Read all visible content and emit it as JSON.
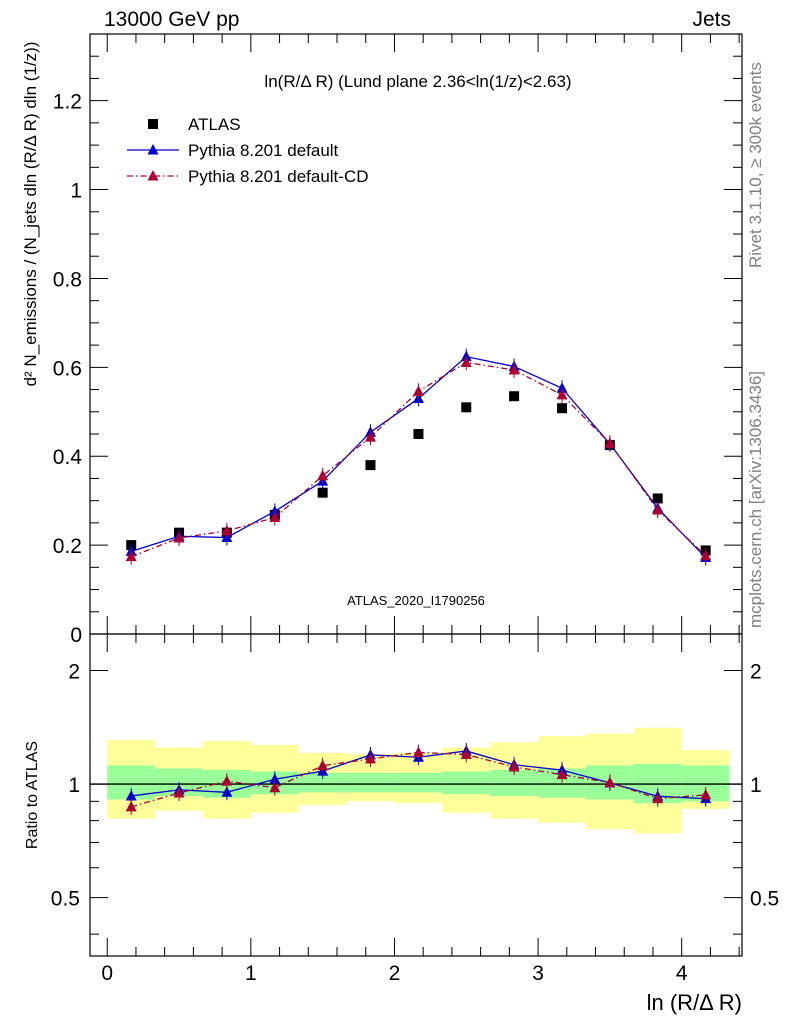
{
  "header": {
    "left": "13000 GeV pp",
    "right": "Jets"
  },
  "side": {
    "rivet": "Rivet 3.1.10, ≥ 300k events",
    "mcplots": "mcplots.cern.ch [arXiv:1306.3436]"
  },
  "chart_data": [
    {
      "type": "scatter",
      "title": "ln(R/Δ R) (Lund plane 2.36<ln(1/z)<2.63)",
      "watermark": "ATLAS_2020_I1790256",
      "ylabel_main": "d² N_emissions / (N_jets dln (R/Δ R) dln (1/z))",
      "xlabel": "ln (R/Δ R)",
      "xlim": [
        -0.12,
        4.42
      ],
      "ylim": [
        0,
        1.35
      ],
      "yticks": [
        "0",
        "0.2",
        "0.4",
        "0.6",
        "0.8",
        "1",
        "1.2"
      ],
      "xticks": [
        "0",
        "1",
        "2",
        "3",
        "4"
      ],
      "legend_position": "top-left",
      "series": [
        {
          "name": "ATLAS",
          "color": "#000000",
          "marker": "square",
          "x": [
            0.167,
            0.5,
            0.833,
            1.167,
            1.5,
            1.833,
            2.167,
            2.5,
            2.833,
            3.167,
            3.5,
            3.833,
            4.167
          ],
          "y": [
            0.2,
            0.228,
            0.228,
            0.268,
            0.318,
            0.38,
            0.45,
            0.51,
            0.535,
            0.508,
            0.425,
            0.305,
            0.188
          ]
        },
        {
          "name": "Pythia 8.201 default",
          "color": "#0000cc",
          "marker": "triangle",
          "line": "solid",
          "x": [
            0.167,
            0.5,
            0.833,
            1.167,
            1.5,
            1.833,
            2.167,
            2.5,
            2.833,
            3.167,
            3.5,
            3.833,
            4.167
          ],
          "y": [
            0.186,
            0.22,
            0.217,
            0.276,
            0.344,
            0.454,
            0.53,
            0.624,
            0.602,
            0.553,
            0.428,
            0.283,
            0.172
          ]
        },
        {
          "name": "Pythia 8.201 default-CD",
          "color": "#aa0033",
          "marker": "triangle",
          "line": "dashdot",
          "x": [
            0.167,
            0.5,
            0.833,
            1.167,
            1.5,
            1.833,
            2.167,
            2.5,
            2.833,
            3.167,
            3.5,
            3.833,
            4.167
          ],
          "y": [
            0.174,
            0.216,
            0.232,
            0.262,
            0.356,
            0.443,
            0.546,
            0.611,
            0.594,
            0.538,
            0.429,
            0.279,
            0.176
          ]
        }
      ]
    },
    {
      "type": "scatter",
      "ylabel": "Ratio to ATLAS",
      "xlabel": "ln (R/Δ R)",
      "xlim": [
        -0.12,
        4.42
      ],
      "ylim": [
        0.35,
        2.5
      ],
      "yticks": [
        "0.5",
        "1",
        "2"
      ],
      "reference_line": 1,
      "bands": {
        "edges": [
          0,
          0.333,
          0.667,
          1.0,
          1.333,
          1.667,
          2.0,
          2.333,
          2.667,
          3.0,
          3.333,
          3.667,
          4.0,
          4.333
        ],
        "inner_lo": [
          0.91,
          0.93,
          0.92,
          0.94,
          0.95,
          0.95,
          0.95,
          0.94,
          0.93,
          0.92,
          0.91,
          0.89,
          0.9
        ],
        "inner_hi": [
          1.12,
          1.1,
          1.09,
          1.08,
          1.07,
          1.07,
          1.07,
          1.08,
          1.09,
          1.1,
          1.12,
          1.13,
          1.12
        ],
        "outer_lo": [
          0.81,
          0.85,
          0.81,
          0.84,
          0.88,
          0.9,
          0.89,
          0.84,
          0.81,
          0.79,
          0.76,
          0.74,
          0.86
        ],
        "outer_hi": [
          1.31,
          1.25,
          1.3,
          1.27,
          1.21,
          1.2,
          1.21,
          1.25,
          1.29,
          1.34,
          1.36,
          1.41,
          1.23
        ],
        "inner_color": "#99ff99",
        "outer_color": "#ffff99"
      },
      "series": [
        {
          "name": "Pythia 8.201 default",
          "color": "#0000cc",
          "x": [
            0.167,
            0.5,
            0.833,
            1.167,
            1.5,
            1.833,
            2.167,
            2.5,
            2.833,
            3.167,
            3.5,
            3.833,
            4.167
          ],
          "y": [
            0.93,
            0.965,
            0.951,
            1.03,
            1.082,
            1.195,
            1.178,
            1.224,
            1.125,
            1.089,
            1.007,
            0.928,
            0.915
          ]
        },
        {
          "name": "Pythia 8.201 default-CD",
          "color": "#aa0033",
          "x": [
            0.167,
            0.5,
            0.833,
            1.167,
            1.5,
            1.833,
            2.167,
            2.5,
            2.833,
            3.167,
            3.5,
            3.833,
            4.167
          ],
          "y": [
            0.87,
            0.947,
            1.018,
            0.978,
            1.119,
            1.166,
            1.213,
            1.198,
            1.11,
            1.059,
            1.009,
            0.915,
            0.936
          ]
        }
      ]
    }
  ]
}
